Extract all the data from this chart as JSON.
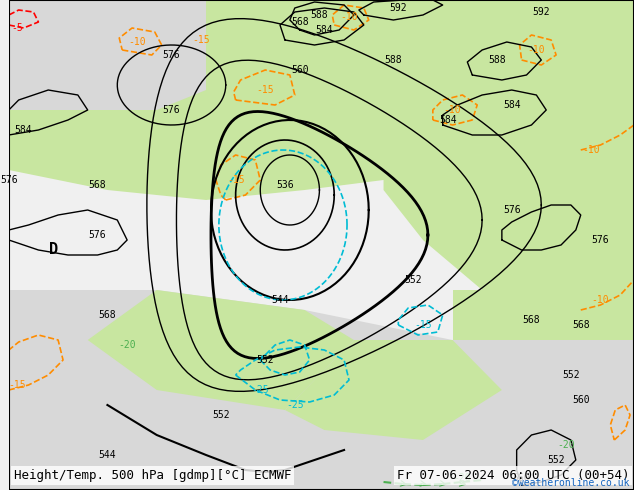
{
  "title_left": "Height/Temp. 500 hPa [gdmp][°C] ECMWF",
  "title_right": "Fr 07-06-2024 06:00 UTC (00+54)",
  "credit": "©weatheronline.co.uk",
  "bg_color": "#e8e8e8",
  "land_color": "#c8e6a0",
  "sea_color": "#e0e0e0",
  "height_contour_color": "#000000",
  "height_thick_contour_color": "#000000",
  "temp_contour_neg_color": "#ff8c00",
  "temp_contour_pos_color": "#ff8c00",
  "temp_cold_color": "#00bcd4",
  "temp_very_cold_color": "#ff0000",
  "wind_color": "#4caf50",
  "label_fontsize": 7,
  "title_fontsize": 9
}
